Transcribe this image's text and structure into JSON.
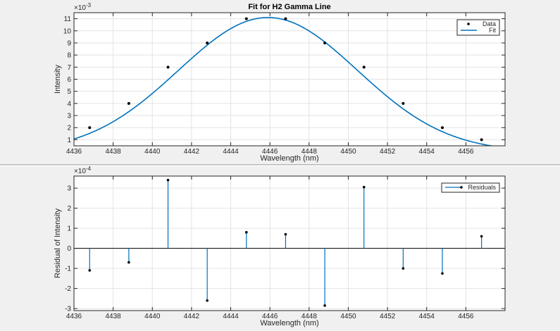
{
  "chart_data": [
    {
      "type": "scatter",
      "title": "Fit for H2 Gamma Line",
      "xlabel": "Wavelength (nm)",
      "ylabel": "Intensity",
      "exponent": "×10",
      "exponent_power": "-3",
      "xlim": [
        4436,
        4458
      ],
      "ylim": [
        0.5,
        11.5
      ],
      "xticks": [
        4436,
        4438,
        4440,
        4442,
        4444,
        4446,
        4448,
        4450,
        4452,
        4454,
        4456
      ],
      "yticks": [
        1,
        2,
        3,
        4,
        5,
        6,
        7,
        8,
        9,
        10,
        11
      ],
      "grid": true,
      "legend_position": "top-right",
      "series": [
        {
          "name": "Data",
          "kind": "points",
          "color": "#000000",
          "x": [
            4436.8,
            4438.8,
            4440.8,
            4442.8,
            4444.8,
            4446.8,
            4448.8,
            4450.8,
            4452.8,
            4454.8,
            4456.8
          ],
          "y": [
            2,
            4,
            7,
            9,
            11,
            11,
            9,
            7,
            4,
            2,
            1
          ]
        },
        {
          "name": "Fit",
          "kind": "gaussian",
          "color": "#0072bd",
          "amplitude": 11.1,
          "center": 4445.9,
          "sigma": 4.57
        }
      ]
    },
    {
      "type": "stem",
      "title": "",
      "xlabel": "Wavelength (nm)",
      "ylabel": "Residual of Intensity",
      "exponent": "×10",
      "exponent_power": "-4",
      "xlim": [
        4436,
        4458
      ],
      "ylim": [
        -3.1,
        3.6
      ],
      "xticks": [
        4436,
        4438,
        4440,
        4442,
        4444,
        4446,
        4448,
        4450,
        4452,
        4454,
        4456
      ],
      "yticks": [
        -3,
        -2,
        -1,
        0,
        1,
        2,
        3
      ],
      "grid": true,
      "legend_position": "top-right",
      "series": [
        {
          "name": "Residuals",
          "color": "#0072bd",
          "x": [
            4436.8,
            4438.8,
            4440.8,
            4442.8,
            4444.8,
            4446.8,
            4448.8,
            4450.8,
            4452.8,
            4454.8,
            4456.8
          ],
          "y": [
            -1.1,
            -0.7,
            3.4,
            -2.6,
            0.8,
            0.7,
            -2.85,
            3.05,
            -1.0,
            -1.25,
            0.6
          ]
        }
      ]
    }
  ]
}
